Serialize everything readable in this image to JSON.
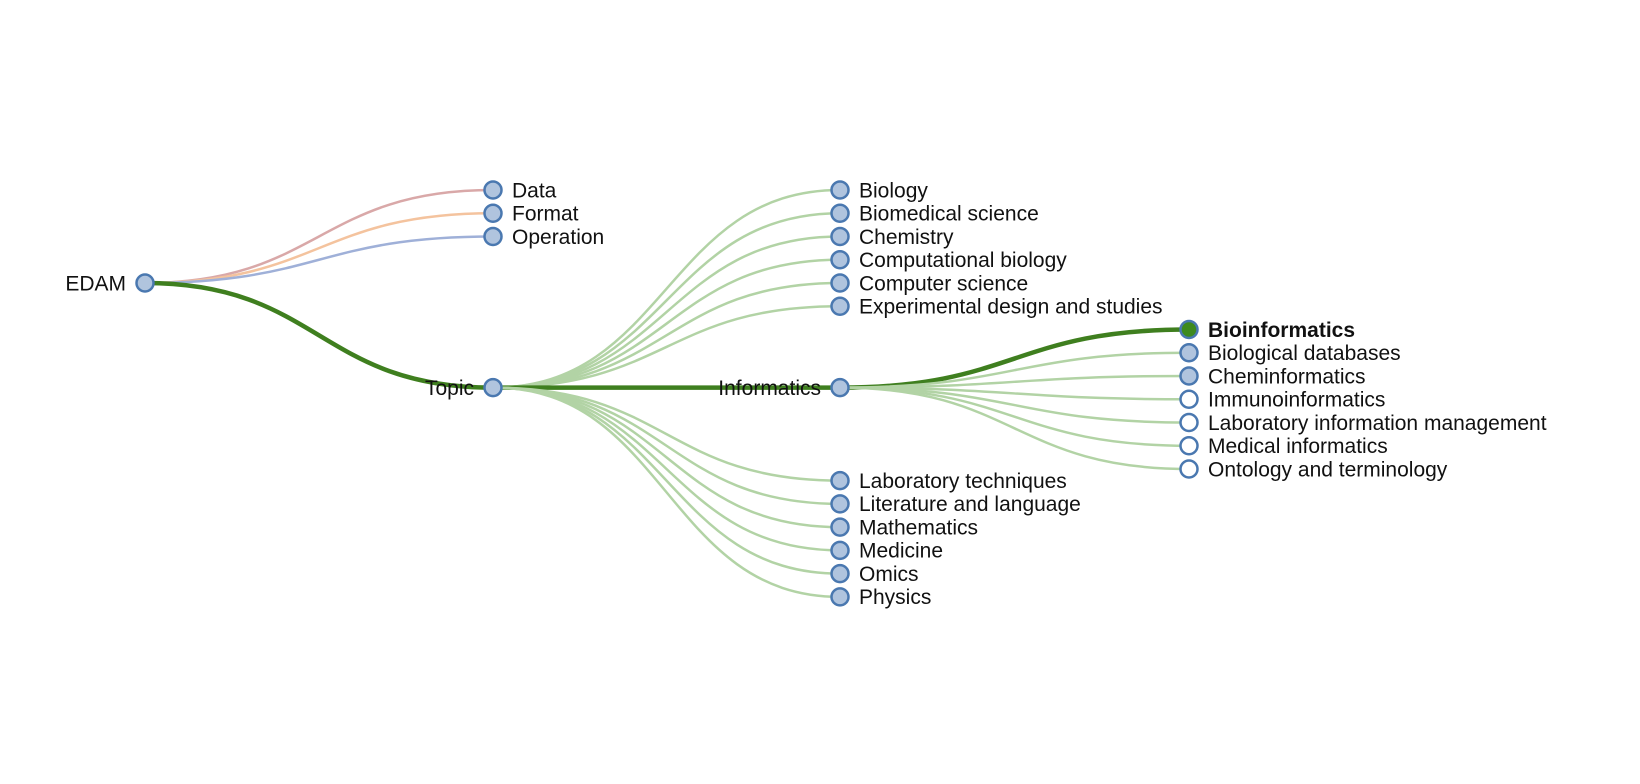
{
  "colors": {
    "node_fill": "#b0c4de",
    "node_stroke": "#4a78b0",
    "leaf_fill": "#ffffff",
    "selected_fill": "#3e8a1e",
    "path_link": "#3f7f1f",
    "topic_link": "#b2d3a5",
    "data_link": "#d9a8a8",
    "format_link": "#f4c39e",
    "operation_link": "#9fb0d8"
  },
  "tree": {
    "root": {
      "id": "edam",
      "label": "EDAM"
    },
    "level1": [
      {
        "id": "data",
        "label": "Data",
        "link": "data_link"
      },
      {
        "id": "format",
        "label": "Format",
        "link": "format_link"
      },
      {
        "id": "operation",
        "label": "Operation",
        "link": "operation_link"
      },
      {
        "id": "topic",
        "label": "Topic",
        "link": "path_link",
        "on_path": true
      }
    ],
    "topic_children": [
      {
        "id": "biology",
        "label": "Biology"
      },
      {
        "id": "biomedical-science",
        "label": "Biomedical science"
      },
      {
        "id": "chemistry",
        "label": "Chemistry"
      },
      {
        "id": "computational-biology",
        "label": "Computational biology"
      },
      {
        "id": "computer-science",
        "label": "Computer science"
      },
      {
        "id": "experimental-design",
        "label": "Experimental design and studies"
      },
      {
        "id": "informatics",
        "label": "Informatics",
        "on_path": true
      },
      {
        "id": "laboratory-techniques",
        "label": "Laboratory techniques"
      },
      {
        "id": "literature-and-language",
        "label": "Literature and language"
      },
      {
        "id": "mathematics",
        "label": "Mathematics"
      },
      {
        "id": "medicine",
        "label": "Medicine"
      },
      {
        "id": "omics",
        "label": "Omics"
      },
      {
        "id": "physics",
        "label": "Physics"
      }
    ],
    "informatics_children": [
      {
        "id": "bioinformatics",
        "label": "Bioinformatics",
        "selected": true
      },
      {
        "id": "biological-databases",
        "label": "Biological databases",
        "expandable": true
      },
      {
        "id": "cheminformatics",
        "label": "Cheminformatics",
        "expandable": true
      },
      {
        "id": "immunoinformatics",
        "label": "Immunoinformatics",
        "expandable": false
      },
      {
        "id": "laboratory-information-management",
        "label": "Laboratory information management",
        "expandable": false
      },
      {
        "id": "medical-informatics",
        "label": "Medical informatics",
        "expandable": false
      },
      {
        "id": "ontology-and-terminology",
        "label": "Ontology and terminology",
        "expandable": false
      }
    ]
  }
}
